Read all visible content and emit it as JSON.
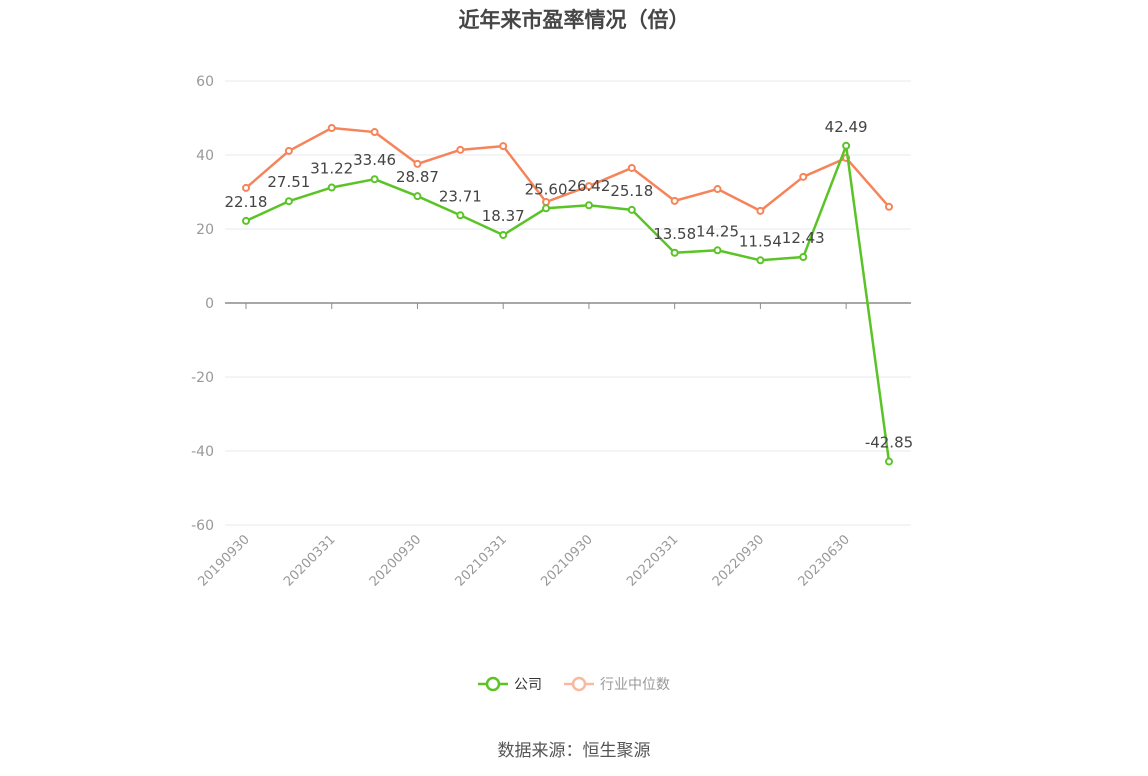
{
  "title": "近年来市盈率情况（倍）",
  "source": "数据来源：恒生聚源",
  "legend": {
    "company": "公司",
    "industry": "行业中位数"
  },
  "colors": {
    "company": "#5ac427",
    "industry": "#f5845a",
    "industry_legend": "#f9b9a0",
    "grid": "#e6e9f2",
    "axis": "#8c8c8c",
    "tick_label": "#999999",
    "data_label": "#444444"
  },
  "chart_data": {
    "type": "line",
    "title": "近年来市盈率情况（倍）",
    "xlabel": "",
    "ylabel": "",
    "ylim": [
      -60,
      60
    ],
    "yticks": [
      60,
      40,
      20,
      0,
      -20,
      -40,
      -60
    ],
    "grid": true,
    "legend_position": "bottom",
    "x": [
      "20190930",
      "20191231",
      "20200331",
      "20200630",
      "20200930",
      "20201231",
      "20210331",
      "20210630",
      "20210930",
      "20211231",
      "20220331",
      "20220630",
      "20220930",
      "20221231",
      "20230630",
      "20230930"
    ],
    "x_tick_labels": [
      "20190930",
      "20200331",
      "20200930",
      "20210331",
      "20210930",
      "20220331",
      "20220930",
      "20230630"
    ],
    "series": [
      {
        "name": "公司",
        "values": [
          22.18,
          27.51,
          31.22,
          33.46,
          28.87,
          23.71,
          18.37,
          25.6,
          26.42,
          25.18,
          13.58,
          14.25,
          11.54,
          12.43,
          42.49,
          -42.85
        ],
        "labels_shown": true
      },
      {
        "name": "行业中位数",
        "values": [
          31.1,
          41.1,
          47.3,
          46.2,
          37.6,
          41.4,
          42.4,
          27.3,
          31.6,
          36.5,
          27.6,
          30.8,
          24.9,
          34.1,
          39.2,
          26.0
        ],
        "labels_shown": false
      }
    ]
  }
}
